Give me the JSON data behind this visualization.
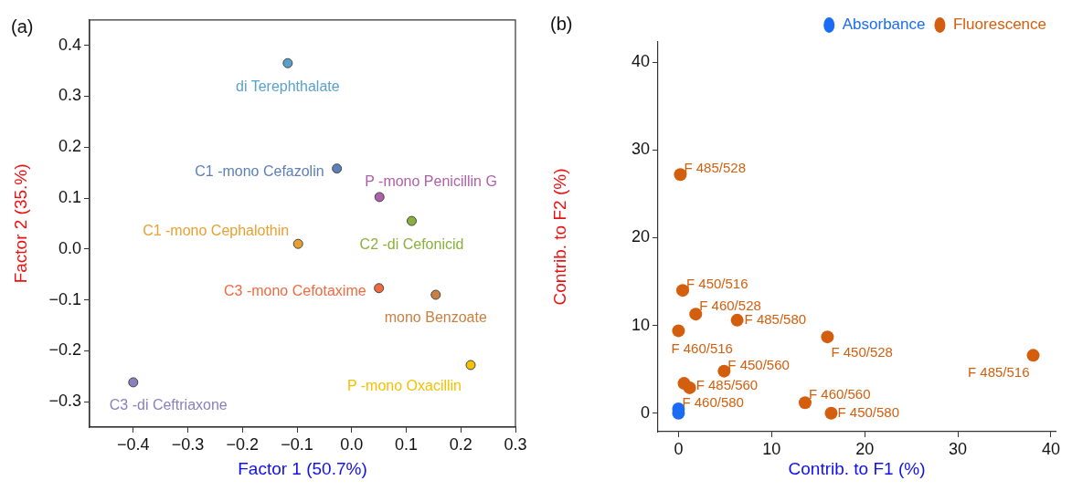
{
  "chart_data": [
    {
      "type": "scatter",
      "title": "(a)",
      "xlabel": "Factor 1 (50.7%)",
      "ylabel": "Factor 2 (35.%)",
      "xlim": [
        -0.48,
        0.3
      ],
      "ylim": [
        -0.35,
        0.45
      ],
      "xticks": [
        -0.4,
        -0.3,
        -0.2,
        -0.1,
        {
          "value": 0,
          "label": "0.0"
        },
        0.1,
        0.2,
        0.3
      ],
      "yticks": [
        -0.3,
        -0.2,
        -0.1,
        {
          "value": 0,
          "label": "0.0"
        },
        0.1,
        0.2,
        0.3,
        0.4
      ],
      "marker": "circle",
      "series": [
        {
          "name": "di Terephthalate",
          "color": "#5aa0cc",
          "x": [
            -0.117
          ],
          "values": [
            0.365
          ]
        },
        {
          "name": "C1 -mono Cefazolin",
          "color": "#5b7fba",
          "x": [
            -0.027
          ],
          "values": [
            0.158
          ]
        },
        {
          "name": "P -mono Penicillin G",
          "color": "#b060a8",
          "x": [
            0.051
          ],
          "values": [
            0.102
          ]
        },
        {
          "name": "C2 -di Cefonicid",
          "color": "#8ab03c",
          "x": [
            0.11
          ],
          "values": [
            0.055
          ]
        },
        {
          "name": "C1 -mono Cephalothin",
          "color": "#e8a030",
          "x": [
            -0.098
          ],
          "values": [
            0.01
          ]
        },
        {
          "name": "C3 -mono Cefotaxime",
          "color": "#f06a40",
          "x": [
            0.05
          ],
          "values": [
            -0.077
          ]
        },
        {
          "name": "mono Benzoate",
          "color": "#c88040",
          "x": [
            0.154
          ],
          "values": [
            -0.09
          ]
        },
        {
          "name": "P -mono Oxacillin",
          "color": "#f5c000",
          "x": [
            0.218
          ],
          "values": [
            -0.228
          ]
        },
        {
          "name": "C3 -di Ceftriaxone",
          "color": "#8a80c0",
          "x": [
            -0.4
          ],
          "values": [
            -0.262
          ]
        }
      ]
    },
    {
      "type": "scatter",
      "title": "(b)",
      "xlabel": "Contrib. to F1 (%)",
      "ylabel": "Contrib. to F2 (%)",
      "xlim": [
        -2.2,
        40.5
      ],
      "ylim": [
        -2.1,
        42.3
      ],
      "xticks": [
        0,
        10,
        20,
        30,
        40
      ],
      "yticks": [
        0,
        10,
        20,
        30,
        40
      ],
      "marker": "circle",
      "legend": "top right",
      "series": [
        {
          "name": "Absorbance",
          "color": "#1a6cf5",
          "x": [
            0,
            0
          ],
          "values": [
            0.5,
            0
          ]
        },
        {
          "name": "Fluorescence",
          "color": "#d35f0e",
          "x": [
            0.2,
            0.45,
            1.85,
            6.3,
            0,
            16,
            38.1,
            4.9,
            0.6,
            1.2,
            13.6,
            16.4
          ],
          "values": [
            27.2,
            14,
            11.3,
            10.6,
            9.4,
            8.7,
            6.6,
            4.8,
            3.4,
            2.9,
            1.2,
            0
          ]
        }
      ],
      "annotations": [
        {
          "text": "F 485/528",
          "x": 0.2,
          "y": 27.2
        },
        {
          "text": "F 450/516",
          "x": 0.45,
          "y": 14
        },
        {
          "text": "F 460/528",
          "x": 1.85,
          "y": 11.3
        },
        {
          "text": "F 485/580",
          "x": 6.3,
          "y": 10.6
        },
        {
          "text": "F 460/516",
          "x": 0,
          "y": 9.4
        },
        {
          "text": "F 450/528",
          "x": 16,
          "y": 8.7
        },
        {
          "text": "F 485/516",
          "x": 38.1,
          "y": 6.6
        },
        {
          "text": "F 450/560",
          "x": 4.9,
          "y": 4.8
        },
        {
          "text": "F 485/560",
          "x": 1.2,
          "y": 2.9
        },
        {
          "text": "F 460/580",
          "x": 0,
          "y": 0.5
        },
        {
          "text": "F 460/560",
          "x": 13.6,
          "y": 1.2
        },
        {
          "text": "F 450/580",
          "x": 16.4,
          "y": 0
        }
      ]
    }
  ]
}
